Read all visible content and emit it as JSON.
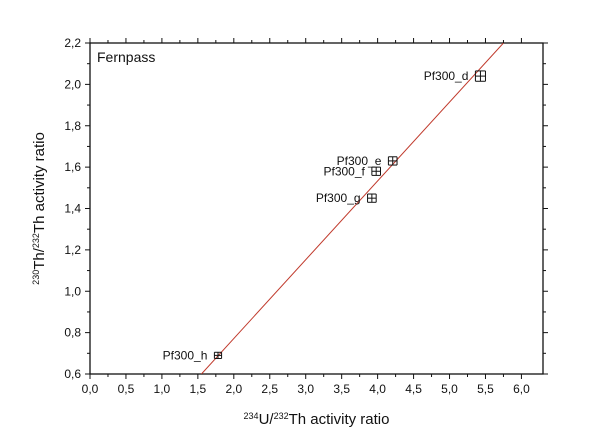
{
  "chart_data": {
    "type": "scatter",
    "title": "Fernpass",
    "xlabel": {
      "parts": [
        {
          "t": "234",
          "sup": true
        },
        {
          "t": "U/",
          "sup": false
        },
        {
          "t": "232",
          "sup": true
        },
        {
          "t": "Th activity ratio",
          "sup": false
        }
      ]
    },
    "ylabel": {
      "parts": [
        {
          "t": "230",
          "sup": true
        },
        {
          "t": "Th/",
          "sup": false
        },
        {
          "t": "232",
          "sup": true
        },
        {
          "t": "Th activity ratio",
          "sup": false
        }
      ]
    },
    "xlim": [
      0.0,
      6.3
    ],
    "ylim": [
      0.6,
      2.2
    ],
    "x_ticks": [
      "0,0",
      "0,5",
      "1,0",
      "1,5",
      "2,0",
      "2,5",
      "3,0",
      "3,5",
      "4,0",
      "4,5",
      "5,0",
      "5,5",
      "6,0"
    ],
    "x_tick_values": [
      0.0,
      0.5,
      1.0,
      1.5,
      2.0,
      2.5,
      3.0,
      3.5,
      4.0,
      4.5,
      5.0,
      5.5,
      6.0
    ],
    "y_ticks": [
      "0,6",
      "0,8",
      "1,0",
      "1,2",
      "1,4",
      "1,6",
      "1,8",
      "2,0",
      "2,2"
    ],
    "y_tick_values": [
      0.6,
      0.8,
      1.0,
      1.2,
      1.4,
      1.6,
      1.8,
      2.0,
      2.2
    ],
    "points": [
      {
        "label": "Pf300_d",
        "x": 5.43,
        "y": 2.04,
        "xerr": 0.07,
        "yerr": 0.025,
        "label_pos": "left"
      },
      {
        "label": "Pf300_e",
        "x": 4.21,
        "y": 1.63,
        "xerr": 0.06,
        "yerr": 0.02,
        "label_pos": "left"
      },
      {
        "label": "Pf300_f",
        "x": 3.98,
        "y": 1.58,
        "xerr": 0.06,
        "yerr": 0.02,
        "label_pos": "left"
      },
      {
        "label": "Pf300_g",
        "x": 3.92,
        "y": 1.45,
        "xerr": 0.06,
        "yerr": 0.02,
        "label_pos": "left"
      },
      {
        "label": "Pf300_h",
        "x": 1.78,
        "y": 0.69,
        "xerr": 0.05,
        "yerr": 0.015,
        "label_pos": "left"
      }
    ],
    "fit_line": {
      "x": [
        1.55,
        5.75
      ],
      "y": [
        0.6,
        2.2
      ],
      "color": "#c0392b"
    },
    "grid": false,
    "colors": {
      "axis": "#111111",
      "points": "#111111",
      "fit": "#c0392b"
    }
  }
}
